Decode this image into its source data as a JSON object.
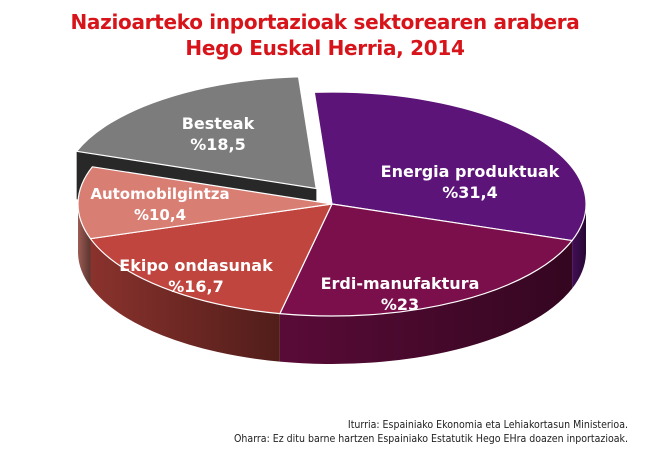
{
  "title_line1": "Nazioarteko inportazioak sektorearen arabera",
  "title_line2": "Hego Euskal Herria, 2014",
  "source_note": "Iturria: Espainiako Ekonomia eta Lehiakortasun Ministerioa.",
  "remark_note": "Oharra: Ez ditu barne hartzen Espainiako Estatutik Hego EHra doazen inportazioak.",
  "chart_data": {
    "type": "pie",
    "title": "Nazioarteko inportazioak sektorearen arabera Hego Euskal Herria, 2014",
    "exploded": "Besteak",
    "slices": [
      {
        "name": "Energia produktuak",
        "value": 31.4,
        "value_label": "%31,4",
        "color": "#5c1478"
      },
      {
        "name": "Erdi-manufaktura",
        "value": 23,
        "value_label": "%23",
        "color": "#7b0f4c"
      },
      {
        "name": "Ekipo ondasunak",
        "value": 16.7,
        "value_label": "%16,7",
        "color": "#c0453e"
      },
      {
        "name": "Automobilgintza",
        "value": 10.4,
        "value_label": "%10,4",
        "color": "#d87e73"
      },
      {
        "name": "Besteak",
        "value": 18.5,
        "value_label": "%18,5",
        "color": "#7c7c7c"
      }
    ]
  }
}
